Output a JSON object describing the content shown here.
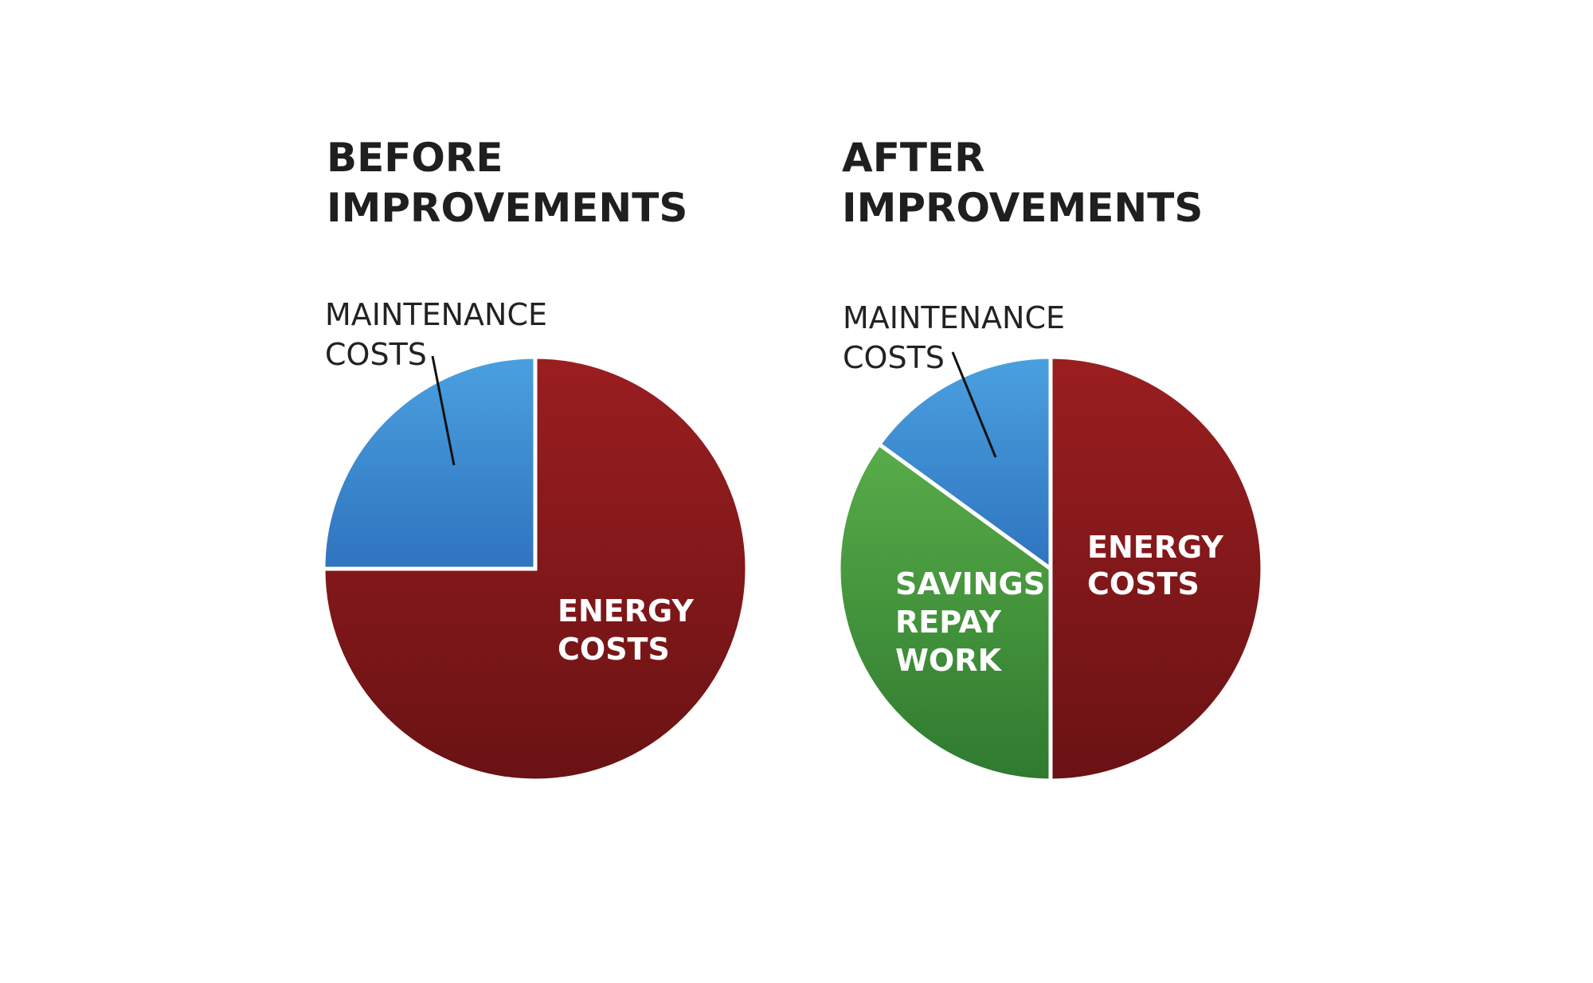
{
  "chart_data": [
    {
      "type": "pie",
      "title": [
        "BEFORE",
        "IMPROVEMENTS"
      ],
      "slices": [
        {
          "label": [
            "ENERGY",
            "COSTS"
          ],
          "value": 75,
          "color": "#8b1a1c"
        },
        {
          "label": [
            "MAINTENANCE",
            "COSTS"
          ],
          "value": 25,
          "color": "#3d8ed6"
        }
      ]
    },
    {
      "type": "pie",
      "title": [
        "AFTER",
        "IMPROVEMENTS"
      ],
      "slices": [
        {
          "label": [
            "ENERGY",
            "COSTS"
          ],
          "value": 50,
          "color": "#8b1a1c"
        },
        {
          "label": [
            "SAVINGS",
            "REPAY",
            "WORK"
          ],
          "value": 35,
          "color": "#3f9a3b"
        },
        {
          "label": [
            "MAINTENANCE",
            "COSTS"
          ],
          "value": 15,
          "color": "#3d8ed6"
        }
      ]
    }
  ]
}
